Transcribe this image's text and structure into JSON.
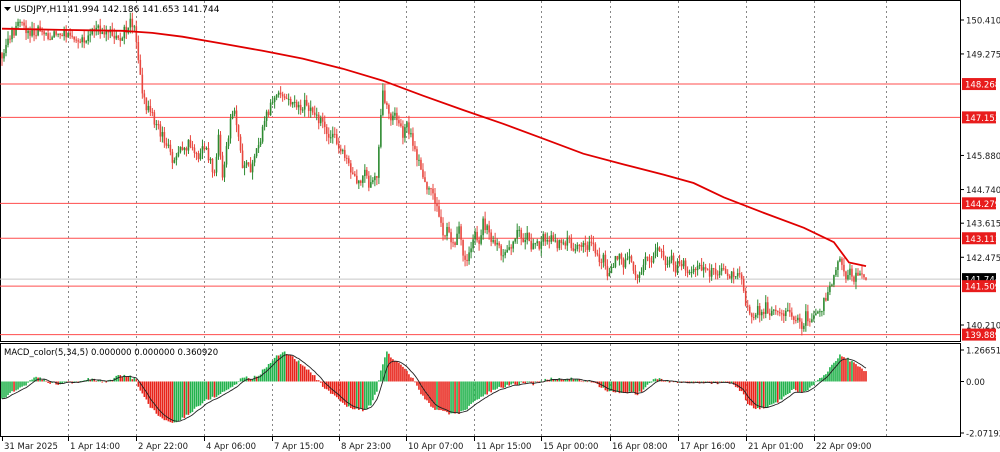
{
  "colors": {
    "bull": "#2e8b32",
    "bear": "#e8473f",
    "bull_hist": "#22b24c",
    "bear_hist": "#e8241a",
    "ma": "#e00000",
    "level_line": "#ff4d4d",
    "level_bg": "#e81c1c",
    "grid": "#6a6a6a",
    "axis_text": "#1a1a1a",
    "signal": "#222222"
  },
  "chart_data": [
    {
      "type": "candlestick",
      "name": "price_panel",
      "header": {
        "symbol": "USDJPY,H1",
        "ohlc_text": "141.994 142.186 141.653 141.744"
      },
      "ylim": [
        139.75,
        151.0
      ],
      "y_ticks": [
        "150.410",
        "149.275",
        "148.268",
        "147.153",
        "145.880",
        "144.740",
        "144.279",
        "143.615",
        "143.111",
        "142.475",
        "141.744",
        "141.509",
        "140.210",
        "139.889"
      ],
      "horizontal_levels": [
        {
          "value": 148.268,
          "label": "148.268"
        },
        {
          "value": 147.153,
          "label": "147.153"
        },
        {
          "value": 144.279,
          "label": "144.279"
        },
        {
          "value": 143.111,
          "label": "143.111"
        },
        {
          "value": 141.509,
          "label": "141.509"
        },
        {
          "value": 139.889,
          "label": "139.889"
        }
      ],
      "current_price": {
        "value": 141.744,
        "label": "141.744"
      },
      "close_path": [
        [
          0,
          149.3
        ],
        [
          5,
          149.7
        ],
        [
          12,
          150.0
        ],
        [
          18,
          150.3
        ],
        [
          24,
          150.1
        ],
        [
          30,
          149.95
        ],
        [
          38,
          150.05
        ],
        [
          46,
          149.85
        ],
        [
          54,
          149.95
        ],
        [
          62,
          150.0
        ],
        [
          70,
          149.9
        ],
        [
          80,
          149.75
        ],
        [
          90,
          150.0
        ],
        [
          98,
          150.1
        ],
        [
          106,
          150.05
        ],
        [
          112,
          149.95
        ],
        [
          118,
          149.75
        ],
        [
          124,
          150.15
        ],
        [
          128,
          150.3
        ],
        [
          132,
          150.1
        ],
        [
          136,
          149.2
        ],
        [
          139,
          148.1
        ],
        [
          143,
          147.6
        ],
        [
          148,
          147.3
        ],
        [
          153,
          147.0
        ],
        [
          158,
          146.6
        ],
        [
          163,
          146.4
        ],
        [
          168,
          146.0
        ],
        [
          172,
          145.6
        ],
        [
          176,
          146.1
        ],
        [
          180,
          145.9
        ],
        [
          185,
          146.3
        ],
        [
          190,
          146.1
        ],
        [
          195,
          145.7
        ],
        [
          199,
          146.2
        ],
        [
          204,
          146.0
        ],
        [
          208,
          145.6
        ],
        [
          212,
          145.2
        ],
        [
          216,
          146.4
        ],
        [
          220,
          145.1
        ],
        [
          224,
          146.2
        ],
        [
          228,
          147.0
        ],
        [
          232,
          147.3
        ],
        [
          236,
          146.6
        ],
        [
          240,
          145.4
        ],
        [
          244,
          145.7
        ],
        [
          248,
          145.3
        ],
        [
          252,
          145.8
        ],
        [
          256,
          146.1
        ],
        [
          260,
          146.8
        ],
        [
          264,
          147.2
        ],
        [
          268,
          147.6
        ],
        [
          272,
          147.8
        ],
        [
          276,
          148.0
        ],
        [
          280,
          147.9
        ],
        [
          285,
          147.8
        ],
        [
          290,
          147.6
        ],
        [
          296,
          147.4
        ],
        [
          302,
          147.6
        ],
        [
          308,
          147.4
        ],
        [
          314,
          147.2
        ],
        [
          320,
          146.9
        ],
        [
          326,
          146.4
        ],
        [
          332,
          146.5
        ],
        [
          338,
          146.0
        ],
        [
          344,
          145.8
        ],
        [
          350,
          145.2
        ],
        [
          356,
          144.9
        ],
        [
          362,
          145.4
        ],
        [
          366,
          144.8
        ],
        [
          370,
          144.9
        ],
        [
          374,
          145.2
        ],
        [
          377,
          146.7
        ],
        [
          380,
          147.9
        ],
        [
          384,
          147.7
        ],
        [
          388,
          147.0
        ],
        [
          392,
          147.4
        ],
        [
          396,
          146.9
        ],
        [
          400,
          146.6
        ],
        [
          404,
          147.0
        ],
        [
          408,
          146.5
        ],
        [
          412,
          146.0
        ],
        [
          416,
          145.6
        ],
        [
          420,
          145.2
        ],
        [
          424,
          144.9
        ],
        [
          428,
          144.6
        ],
        [
          432,
          144.4
        ],
        [
          436,
          143.8
        ],
        [
          440,
          143.3
        ],
        [
          444,
          143.4
        ],
        [
          448,
          143.0
        ],
        [
          452,
          142.8
        ],
        [
          456,
          143.6
        ],
        [
          460,
          142.6
        ],
        [
          464,
          142.2
        ],
        [
          468,
          142.8
        ],
        [
          472,
          143.2
        ],
        [
          476,
          142.9
        ],
        [
          480,
          143.7
        ],
        [
          484,
          143.4
        ],
        [
          488,
          143.0
        ],
        [
          492,
          142.9
        ],
        [
          496,
          142.7
        ],
        [
          500,
          142.5
        ],
        [
          504,
          142.8
        ],
        [
          508,
          142.6
        ],
        [
          512,
          143.1
        ],
        [
          516,
          143.4
        ],
        [
          520,
          143.0
        ],
        [
          524,
          143.2
        ],
        [
          528,
          142.9
        ],
        [
          532,
          143.1
        ],
        [
          536,
          142.8
        ],
        [
          540,
          143.3
        ],
        [
          544,
          143.0
        ],
        [
          548,
          143.1
        ],
        [
          552,
          142.9
        ],
        [
          556,
          143.0
        ],
        [
          560,
          142.8
        ],
        [
          564,
          143.0
        ],
        [
          568,
          142.9
        ],
        [
          572,
          142.8
        ],
        [
          576,
          142.9
        ],
        [
          580,
          143.0
        ],
        [
          584,
          142.8
        ],
        [
          588,
          142.9
        ],
        [
          592,
          142.7
        ],
        [
          596,
          142.2
        ],
        [
          600,
          142.5
        ],
        [
          604,
          141.9
        ],
        [
          608,
          142.1
        ],
        [
          612,
          142.4
        ],
        [
          616,
          142.6
        ],
        [
          620,
          142.3
        ],
        [
          624,
          142.5
        ],
        [
          628,
          142.2
        ],
        [
          632,
          141.7
        ],
        [
          636,
          141.8
        ],
        [
          640,
          142.3
        ],
        [
          644,
          142.5
        ],
        [
          648,
          142.3
        ],
        [
          652,
          142.6
        ],
        [
          656,
          142.7
        ],
        [
          660,
          142.4
        ],
        [
          664,
          142.2
        ],
        [
          668,
          142.5
        ],
        [
          672,
          142.1
        ],
        [
          676,
          142.3
        ],
        [
          680,
          142.2
        ],
        [
          686,
          142.0
        ],
        [
          692,
          142.1
        ],
        [
          700,
          142.0
        ],
        [
          708,
          141.95
        ],
        [
          716,
          142.0
        ],
        [
          724,
          141.95
        ],
        [
          732,
          141.85
        ],
        [
          738,
          141.7
        ],
        [
          742,
          140.8
        ],
        [
          746,
          140.6
        ],
        [
          750,
          140.5
        ],
        [
          754,
          140.7
        ],
        [
          758,
          140.6
        ],
        [
          762,
          140.8
        ],
        [
          766,
          140.7
        ],
        [
          770,
          140.6
        ],
        [
          774,
          140.8
        ],
        [
          778,
          140.6
        ],
        [
          782,
          140.7
        ],
        [
          786,
          140.8
        ],
        [
          790,
          140.5
        ],
        [
          794,
          140.3
        ],
        [
          798,
          140.2
        ],
        [
          802,
          140.5
        ],
        [
          806,
          140.3
        ],
        [
          810,
          140.5
        ],
        [
          814,
          140.8
        ],
        [
          818,
          140.7
        ],
        [
          822,
          141.2
        ],
        [
          826,
          141.4
        ],
        [
          830,
          141.8
        ],
        [
          834,
          142.5
        ],
        [
          838,
          142.1
        ],
        [
          842,
          141.8
        ],
        [
          846,
          142.0
        ],
        [
          850,
          141.7
        ],
        [
          854,
          142.0
        ],
        [
          858,
          141.9
        ],
        [
          862,
          141.744
        ]
      ],
      "moving_average": [
        [
          0,
          150.12
        ],
        [
          60,
          150.08
        ],
        [
          120,
          150.05
        ],
        [
          150,
          149.98
        ],
        [
          180,
          149.85
        ],
        [
          220,
          149.62
        ],
        [
          260,
          149.38
        ],
        [
          300,
          149.12
        ],
        [
          340,
          148.78
        ],
        [
          380,
          148.38
        ],
        [
          420,
          147.88
        ],
        [
          460,
          147.4
        ],
        [
          500,
          146.94
        ],
        [
          540,
          146.44
        ],
        [
          580,
          145.94
        ],
        [
          620,
          145.58
        ],
        [
          660,
          145.24
        ],
        [
          690,
          144.96
        ],
        [
          720,
          144.48
        ],
        [
          760,
          143.96
        ],
        [
          800,
          143.46
        ],
        [
          830,
          142.98
        ],
        [
          845,
          142.3
        ],
        [
          862,
          142.18
        ]
      ],
      "x_labels": [
        "31 Mar 2025",
        "1 Apr 14:00",
        "2 Apr 22:00",
        "4 Apr 06:00",
        "7 Apr 15:00",
        "8 Apr 23:00",
        "10 Apr 07:00",
        "11 Apr 15:00",
        "15 Apr 00:00",
        "16 Apr 08:00",
        "17 Apr 16:00",
        "21 Apr 01:00",
        "22 Apr 09:00"
      ]
    },
    {
      "type": "bar",
      "name": "macd_panel",
      "header": "MACD_color(5,34,5) 0.000000 0.000000 0.360920",
      "ylim": [
        -2.071924,
        1.266515
      ],
      "y_ticks": [
        "1.266515",
        "0.00",
        "-2.071924"
      ],
      "histogram_path": [
        [
          0,
          -0.7
        ],
        [
          8,
          -0.5
        ],
        [
          16,
          -0.3
        ],
        [
          24,
          -0.1
        ],
        [
          32,
          0.15
        ],
        [
          40,
          0.1
        ],
        [
          48,
          -0.05
        ],
        [
          56,
          -0.1
        ],
        [
          64,
          0.05
        ],
        [
          72,
          -0.05
        ],
        [
          80,
          0.05
        ],
        [
          88,
          0.1
        ],
        [
          96,
          0.05
        ],
        [
          104,
          -0.05
        ],
        [
          112,
          0.15
        ],
        [
          120,
          0.25
        ],
        [
          128,
          0.2
        ],
        [
          134,
          0.05
        ],
        [
          138,
          -0.4
        ],
        [
          146,
          -0.9
        ],
        [
          154,
          -1.3
        ],
        [
          162,
          -1.55
        ],
        [
          170,
          -1.7
        ],
        [
          178,
          -1.55
        ],
        [
          186,
          -1.3
        ],
        [
          194,
          -1.05
        ],
        [
          202,
          -0.8
        ],
        [
          210,
          -0.65
        ],
        [
          218,
          -0.5
        ],
        [
          226,
          -0.3
        ],
        [
          234,
          -0.1
        ],
        [
          240,
          0.2
        ],
        [
          248,
          0.1
        ],
        [
          256,
          0.25
        ],
        [
          264,
          0.6
        ],
        [
          272,
          0.95
        ],
        [
          280,
          1.2
        ],
        [
          288,
          1.05
        ],
        [
          296,
          0.8
        ],
        [
          304,
          0.5
        ],
        [
          312,
          0.2
        ],
        [
          320,
          -0.2
        ],
        [
          330,
          -0.55
        ],
        [
          340,
          -0.9
        ],
        [
          350,
          -1.1
        ],
        [
          360,
          -1.15
        ],
        [
          368,
          -0.95
        ],
        [
          374,
          -0.4
        ],
        [
          378,
          0.5
        ],
        [
          384,
          1.15
        ],
        [
          388,
          1.0
        ],
        [
          394,
          0.8
        ],
        [
          402,
          0.5
        ],
        [
          410,
          0.1
        ],
        [
          418,
          -0.5
        ],
        [
          426,
          -0.9
        ],
        [
          434,
          -1.15
        ],
        [
          442,
          -1.25
        ],
        [
          450,
          -1.3
        ],
        [
          458,
          -1.25
        ],
        [
          466,
          -1.0
        ],
        [
          474,
          -0.75
        ],
        [
          482,
          -0.55
        ],
        [
          490,
          -0.35
        ],
        [
          498,
          -0.25
        ],
        [
          506,
          -0.15
        ],
        [
          514,
          -0.1
        ],
        [
          522,
          -0.05
        ],
        [
          530,
          -0.1
        ],
        [
          538,
          0.05
        ],
        [
          546,
          0.1
        ],
        [
          554,
          0.08
        ],
        [
          562,
          0.12
        ],
        [
          570,
          0.1
        ],
        [
          578,
          0.05
        ],
        [
          586,
          0.0
        ],
        [
          594,
          -0.15
        ],
        [
          602,
          -0.35
        ],
        [
          610,
          -0.45
        ],
        [
          618,
          -0.4
        ],
        [
          626,
          -0.45
        ],
        [
          634,
          -0.5
        ],
        [
          642,
          -0.25
        ],
        [
          650,
          0.1
        ],
        [
          658,
          0.08
        ],
        [
          666,
          0.0
        ],
        [
          674,
          -0.05
        ],
        [
          682,
          -0.05
        ],
        [
          690,
          -0.05
        ],
        [
          700,
          -0.05
        ],
        [
          710,
          -0.05
        ],
        [
          720,
          -0.05
        ],
        [
          730,
          -0.1
        ],
        [
          738,
          -0.4
        ],
        [
          744,
          -0.9
        ],
        [
          750,
          -1.05
        ],
        [
          758,
          -1.1
        ],
        [
          766,
          -1.0
        ],
        [
          774,
          -0.8
        ],
        [
          782,
          -0.55
        ],
        [
          790,
          -0.35
        ],
        [
          798,
          -0.45
        ],
        [
          806,
          -0.3
        ],
        [
          814,
          0.05
        ],
        [
          822,
          0.35
        ],
        [
          830,
          0.75
        ],
        [
          836,
          1.1
        ],
        [
          842,
          0.95
        ],
        [
          848,
          0.8
        ],
        [
          854,
          0.65
        ],
        [
          862,
          0.36
        ]
      ],
      "x_labels": [
        "31 Mar 2025",
        "1 Apr 14:00",
        "2 Apr 22:00",
        "4 Apr 06:00",
        "7 Apr 15:00",
        "8 Apr 23:00",
        "10 Apr 07:00",
        "11 Apr 15:00",
        "15 Apr 00:00",
        "16 Apr 08:00",
        "17 Apr 16:00",
        "21 Apr 01:00",
        "22 Apr 09:00"
      ]
    }
  ]
}
